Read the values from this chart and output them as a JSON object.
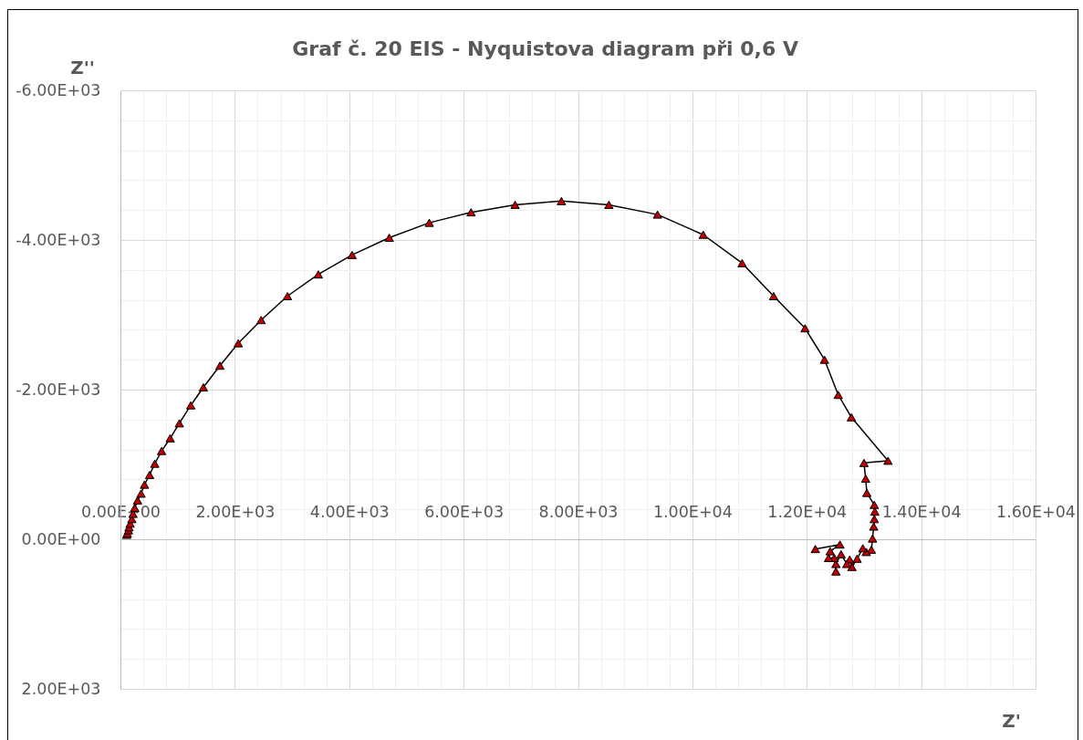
{
  "chart_data": {
    "type": "line",
    "title": "Graf č. 20 EIS - Nyquistova diagram při 0,6 V",
    "xlabel": "Z'",
    "ylabel": "Z''",
    "x": [
      110,
      120,
      140,
      150,
      170,
      200,
      220,
      250,
      300,
      360,
      420,
      510,
      600,
      720,
      870,
      1030,
      1230,
      1450,
      1740,
      2060,
      2460,
      2920,
      3460,
      4050,
      4700,
      5400,
      6130,
      6900,
      7710,
      8540,
      9390,
      10190,
      10870,
      11420,
      11970,
      12310,
      12550,
      12780,
      13420,
      13000,
      13030,
      13050,
      13180,
      13190,
      13180,
      13170,
      13150,
      13130,
      13040,
      12980,
      12880,
      12790,
      12750,
      12700,
      12600,
      12510,
      12510,
      12480,
      12380,
      12410,
      12580,
      12150
    ],
    "series": [
      {
        "color": "#c00000",
        "values": [
          -60,
          -80,
          -120,
          -160,
          -210,
          -270,
          -340,
          -420,
          -520,
          -610,
          -730,
          -860,
          -1010,
          -1180,
          -1350,
          -1550,
          -1790,
          -2030,
          -2320,
          -2620,
          -2930,
          -3250,
          -3540,
          -3800,
          -4030,
          -4230,
          -4370,
          -4470,
          -4520,
          -4470,
          -4340,
          -4070,
          -3690,
          -3250,
          -2820,
          -2400,
          -1930,
          -1630,
          -1050,
          -1020,
          -810,
          -620,
          -460,
          -370,
          -270,
          -170,
          -10,
          140,
          170,
          120,
          260,
          370,
          270,
          330,
          200,
          330,
          430,
          250,
          250,
          160,
          70,
          130
        ]
      }
    ],
    "marker": "triangle",
    "line_style": "solid",
    "grid": true,
    "xlim": [
      0,
      16000
    ],
    "xticks": [
      {
        "value": 0,
        "label": "0.00E+00"
      },
      {
        "value": 400,
        "label": null
      },
      {
        "value": 800,
        "label": null
      },
      {
        "value": 1200,
        "label": null
      },
      {
        "value": 1600,
        "label": null
      },
      {
        "value": 2000,
        "label": "2.00E+03"
      },
      {
        "value": 2400,
        "label": null
      },
      {
        "value": 2800,
        "label": null
      },
      {
        "value": 3200,
        "label": null
      },
      {
        "value": 3600,
        "label": null
      },
      {
        "value": 4000,
        "label": "4.00E+03"
      },
      {
        "value": 4400,
        "label": null
      },
      {
        "value": 4800,
        "label": null
      },
      {
        "value": 5200,
        "label": null
      },
      {
        "value": 5600,
        "label": null
      },
      {
        "value": 6000,
        "label": "6.00E+03"
      },
      {
        "value": 6400,
        "label": null
      },
      {
        "value": 6800,
        "label": null
      },
      {
        "value": 7200,
        "label": null
      },
      {
        "value": 7600,
        "label": null
      },
      {
        "value": 8000,
        "label": "8.00E+03"
      },
      {
        "value": 8400,
        "label": null
      },
      {
        "value": 8800,
        "label": null
      },
      {
        "value": 9200,
        "label": null
      },
      {
        "value": 9600,
        "label": null
      },
      {
        "value": 10000,
        "label": "1.00E+04"
      },
      {
        "value": 10400,
        "label": null
      },
      {
        "value": 10800,
        "label": null
      },
      {
        "value": 11200,
        "label": null
      },
      {
        "value": 11600,
        "label": null
      },
      {
        "value": 12000,
        "label": "1.20E+04"
      },
      {
        "value": 12400,
        "label": null
      },
      {
        "value": 12800,
        "label": null
      },
      {
        "value": 13200,
        "label": null
      },
      {
        "value": 13600,
        "label": null
      },
      {
        "value": 14000,
        "label": "1.40E+04"
      },
      {
        "value": 14400,
        "label": null
      },
      {
        "value": 14800,
        "label": null
      },
      {
        "value": 15200,
        "label": null
      },
      {
        "value": 15600,
        "label": null
      },
      {
        "value": 16000,
        "label": "1.60E+04"
      }
    ],
    "ylim": [
      2000,
      -6000
    ],
    "yticks": [
      {
        "value": -6000,
        "label": "-6.00E+03"
      },
      {
        "value": -5600,
        "label": null
      },
      {
        "value": -5200,
        "label": null
      },
      {
        "value": -4800,
        "label": null
      },
      {
        "value": -4400,
        "label": null
      },
      {
        "value": -4000,
        "label": "-4.00E+03"
      },
      {
        "value": -3600,
        "label": null
      },
      {
        "value": -3200,
        "label": null
      },
      {
        "value": -2800,
        "label": null
      },
      {
        "value": -2400,
        "label": null
      },
      {
        "value": -2000,
        "label": "-2.00E+03"
      },
      {
        "value": -1600,
        "label": null
      },
      {
        "value": -1200,
        "label": null
      },
      {
        "value": -800,
        "label": null
      },
      {
        "value": -400,
        "label": null
      },
      {
        "value": 0,
        "label": "0.00E+00"
      },
      {
        "value": 400,
        "label": null
      },
      {
        "value": 800,
        "label": null
      },
      {
        "value": 1200,
        "label": null
      },
      {
        "value": 1600,
        "label": null
      },
      {
        "value": 2000,
        "label": "2.00E+03"
      }
    ]
  }
}
